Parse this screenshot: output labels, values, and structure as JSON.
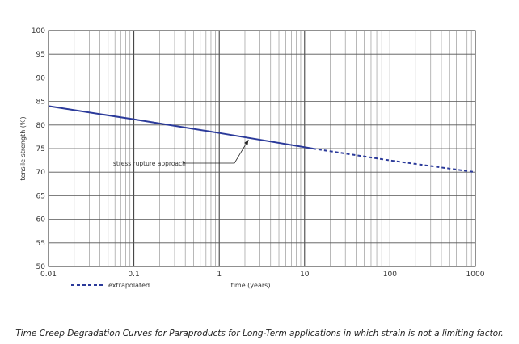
{
  "caption": "Time Creep Degradation Curves for Paraproducts for Long-Term applications in which strain is not a limiting factor.",
  "chart_data": {
    "type": "line",
    "xlabel": "time (years)",
    "ylabel": "tensile strength (%)",
    "xscale": "log",
    "xlim": [
      0.01,
      1000
    ],
    "ylim": [
      50,
      100
    ],
    "x_ticks": [
      0.01,
      0.1,
      1,
      10,
      100,
      1000
    ],
    "x_tick_labels": [
      "0.01",
      "0.1",
      "1",
      "10",
      "100",
      "1000"
    ],
    "y_ticks": [
      50,
      55,
      60,
      65,
      70,
      75,
      80,
      85,
      90,
      95,
      100
    ],
    "y_tick_labels": [
      "50",
      "55",
      "60",
      "65",
      "70",
      "75",
      "80",
      "85",
      "90",
      "95",
      "100"
    ],
    "grid": true,
    "series": [
      {
        "name": "",
        "style": "solid",
        "color": "#2b3a9a",
        "x": [
          0.01,
          0.1,
          1,
          12.5
        ],
        "y": [
          84,
          81.2,
          78.3,
          75
        ]
      },
      {
        "name": "extrapolated",
        "style": "dashed",
        "color": "#2b3a9a",
        "x": [
          12.5,
          100,
          1000
        ],
        "y": [
          75,
          72.5,
          70
        ]
      }
    ],
    "annotations": [
      {
        "text": "stress rupture approach",
        "x": 2.2,
        "y": 77.2
      }
    ],
    "legend_position": "bottom-left"
  }
}
